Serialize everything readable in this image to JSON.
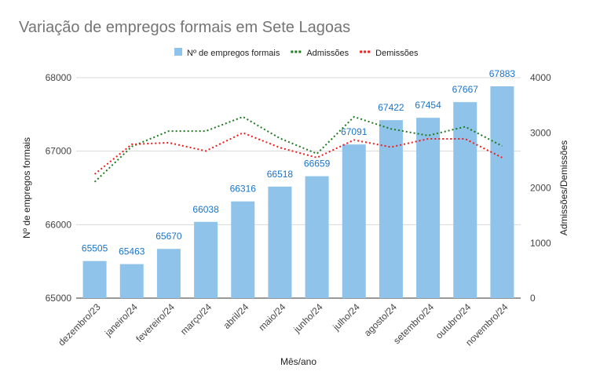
{
  "chart_data": {
    "type": "bar",
    "title": "Variação de empregos formais em Sete Lagoas",
    "xlabel": "Mês/ano",
    "ylabel": "Nº de empregos formais",
    "y2label": "Admissões/Demissões",
    "categories": [
      "dezembro/23",
      "janeiro/24",
      "fevereiro/24",
      "março/24",
      "abril/24",
      "maio/24",
      "junho/24",
      "julho/24",
      "agosto/24",
      "setembro/24",
      "outubro/24",
      "novembro/24"
    ],
    "ylim": [
      65000,
      68000
    ],
    "y2lim": [
      0,
      4000
    ],
    "yticks": [
      "65000",
      "66000",
      "67000",
      "68000"
    ],
    "y2ticks": [
      "0",
      "1000",
      "2000",
      "3000",
      "4000"
    ],
    "grid": true,
    "legend_position": "top",
    "series": [
      {
        "name": "Nº de empregos formais",
        "type": "bar",
        "axis": "left",
        "color": "#8fc3ea",
        "label_color": "#1a73c8",
        "values": [
          65505,
          65463,
          65670,
          66038,
          66316,
          66518,
          66659,
          67091,
          67422,
          67454,
          67667,
          67883
        ]
      },
      {
        "name": "Admissões",
        "type": "line",
        "axis": "right",
        "style": "dotted",
        "color": "#1e7a1e",
        "values": [
          2110,
          2750,
          3030,
          3030,
          3290,
          2900,
          2620,
          3290,
          3070,
          2950,
          3110,
          2760
        ]
      },
      {
        "name": "Demissões",
        "type": "line",
        "axis": "right",
        "style": "dotted",
        "color": "#ee1c1c",
        "values": [
          2250,
          2790,
          2820,
          2670,
          3000,
          2730,
          2550,
          2870,
          2740,
          2890,
          2890,
          2550
        ]
      }
    ]
  }
}
